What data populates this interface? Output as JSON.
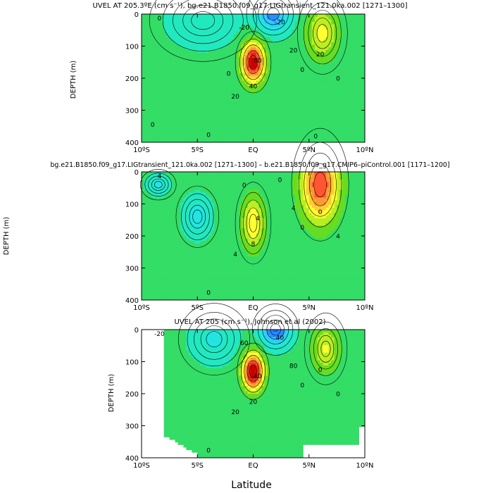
{
  "figure": {
    "xlabel": "Latitude"
  },
  "colors": {
    "levels": [
      -40,
      -30,
      -20,
      -10,
      0,
      10,
      20,
      30,
      40,
      50,
      60,
      70,
      80
    ],
    "fills": [
      "#1565ff",
      "#2a8cff",
      "#33c8ff",
      "#22e5e0",
      "#22e8c0",
      "#33dd66",
      "#66dd22",
      "#bbee22",
      "#ffff33",
      "#ffcc33",
      "#ff9933",
      "#ff5533",
      "#ee2211",
      "#cc0000"
    ],
    "missing": "#ffffff"
  },
  "chart_data": [
    {
      "type": "heatmap",
      "title": "UVEL AT 205.3ºE (cm s⁻¹), bg.e21.B1850.f09_g17.LIGtransient_121.0ka.002 [1271–1300]",
      "xlabel": "",
      "ylabel": "DEPTH  (m)",
      "xlim": [
        -10,
        10
      ],
      "ylim": [
        400,
        0
      ],
      "x_ticks": [
        "10ºS",
        "5ºS",
        "EQ",
        "5ºN",
        "10ºN"
      ],
      "y_ticks": [
        "0",
        "100",
        "200",
        "300",
        "400"
      ],
      "scale": 1,
      "contour_labels": [
        "0",
        "-20",
        "-20",
        "20",
        "60",
        "40",
        "20",
        "0",
        "0",
        "20",
        "0",
        "0",
        "0",
        "0"
      ],
      "features": [
        {
          "kind": "jet",
          "lat": 0.0,
          "depth": 150,
          "max": 83,
          "wlat": 1.0,
          "wdepth": 60
        },
        {
          "kind": "ncc",
          "lat": 6.2,
          "depth": 60,
          "max": 30,
          "wlat": 1.4,
          "wdepth": 80
        },
        {
          "kind": "sec",
          "lat": 1.8,
          "depth": 0,
          "max": -38,
          "wlat": 1.5,
          "wdepth": 55
        },
        {
          "kind": "sec_s",
          "lat": -4.5,
          "depth": 20,
          "max": -13,
          "wlat": 3.0,
          "wdepth": 80
        }
      ],
      "background": 3
    },
    {
      "type": "heatmap",
      "title": "bg.e21.B1850.f09_g17.LIGtransient_121.0ka.002 [1271–1300] – b.e21.B1850.f09_g17.CMIP6–piControl.001 [1171–1200]",
      "xlabel": "",
      "ylabel": "DEPTH  (m)",
      "xlim": [
        -10,
        10
      ],
      "ylim": [
        400,
        0
      ],
      "x_ticks": [
        "10ºS",
        "5ºS",
        "EQ",
        "5ºN",
        "10ºN"
      ],
      "y_ticks": [
        "0",
        "100",
        "200",
        "300",
        "400"
      ],
      "scale": 0.15,
      "contour_labels": [
        "4",
        "0",
        "0",
        "4",
        "4",
        "8",
        "4",
        "0",
        "0",
        "0",
        "4"
      ],
      "features": [
        {
          "kind": "jet",
          "lat": 0.0,
          "depth": 160,
          "max": 5.5,
          "wlat": 1.0,
          "wdepth": 80
        },
        {
          "kind": "ncc",
          "lat": 6.0,
          "depth": 40,
          "max": 10,
          "wlat": 1.6,
          "wdepth": 110
        },
        {
          "kind": "sec_s",
          "lat": -5.0,
          "depth": 140,
          "max": -3,
          "wlat": 1.2,
          "wdepth": 60
        },
        {
          "kind": "sec_s",
          "lat": -8.5,
          "depth": 40,
          "max": -2.5,
          "wlat": 1.0,
          "wdepth": 30
        }
      ],
      "background": 0.5
    },
    {
      "type": "heatmap",
      "title": "UVEL AT 205 (cm s⁻¹), Johnson et al (2002)",
      "xlabel": "Latitude",
      "ylabel": "DEPTH  (m)",
      "xlim": [
        -10,
        10
      ],
      "ylim": [
        400,
        0
      ],
      "x_ticks": [
        "10ºS",
        "5ºS",
        "EQ",
        "5ºN",
        "10ºN"
      ],
      "y_ticks": [
        "0",
        "100",
        "200",
        "300",
        "400"
      ],
      "scale": 1,
      "contour_labels": [
        "-20",
        "40",
        "60",
        "80",
        "40",
        "20",
        "20",
        "0",
        "0",
        "0",
        "0"
      ],
      "features": [
        {
          "kind": "jet",
          "lat": 0.0,
          "depth": 130,
          "max": 90,
          "wlat": 0.9,
          "wdepth": 55
        },
        {
          "kind": "ncc",
          "lat": 6.5,
          "depth": 60,
          "max": 28,
          "wlat": 1.2,
          "wdepth": 70
        },
        {
          "kind": "sec",
          "lat": 2.0,
          "depth": 0,
          "max": -45,
          "wlat": 1.3,
          "wdepth": 50
        },
        {
          "kind": "sec_s",
          "lat": -3.5,
          "depth": 30,
          "max": -15,
          "wlat": 2.0,
          "wdepth": 70
        }
      ],
      "background": 3,
      "missing_region": "south of 8ºS and near-bottom gaps"
    }
  ]
}
